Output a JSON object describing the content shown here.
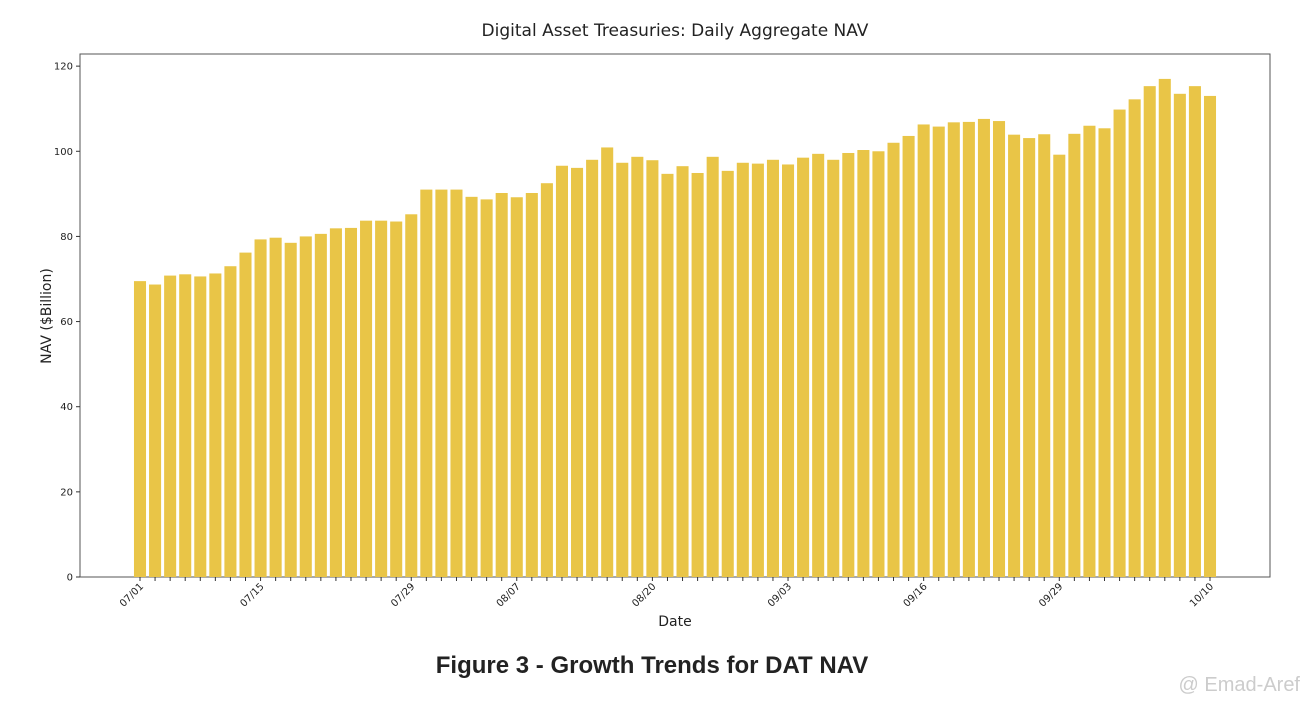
{
  "chart_data": {
    "type": "bar",
    "title": "Digital Asset Treasuries: Daily Aggregate NAV",
    "x_label": "Date",
    "y_label": "NAV ($Billion)",
    "color": "#e9c547",
    "categories": [
      "07/01",
      null,
      null,
      null,
      null,
      null,
      null,
      null,
      "07/15",
      null,
      null,
      null,
      null,
      null,
      null,
      null,
      null,
      null,
      "07/29",
      null,
      null,
      null,
      null,
      null,
      null,
      "08/07",
      null,
      null,
      null,
      null,
      null,
      null,
      null,
      null,
      "08/20",
      null,
      null,
      null,
      null,
      null,
      null,
      null,
      null,
      "09/03",
      null,
      null,
      null,
      null,
      null,
      null,
      null,
      null,
      "09/16",
      null,
      null,
      null,
      null,
      null,
      null,
      null,
      null,
      "09/29",
      null,
      null,
      null,
      null,
      null,
      null,
      null,
      null,
      null,
      "10/10"
    ],
    "values": [
      69.5,
      68.7,
      70.8,
      71.1,
      70.6,
      71.3,
      73,
      76.2,
      79.3,
      79.7,
      78.5,
      80,
      80.6,
      81.9,
      82,
      83.7,
      83.7,
      83.5,
      85.2,
      91,
      91,
      91,
      89.3,
      88.7,
      90.2,
      89.2,
      90.2,
      92.5,
      96.6,
      96.1,
      98,
      100.9,
      97.3,
      98.7,
      97.9,
      94.7,
      96.5,
      94.9,
      98.7,
      95.4,
      97.3,
      97.1,
      98,
      96.9,
      98.5,
      99.4,
      98,
      99.6,
      100.3,
      100,
      102,
      103.6,
      106.3,
      105.8,
      106.8,
      106.9,
      107.6,
      107.1,
      103.9,
      103.1,
      104,
      99.2,
      104.1,
      106,
      105.4,
      109.8,
      112.2,
      115.3,
      117,
      113.5,
      115.3,
      113
    ],
    "ylim": [
      0,
      122.85
    ],
    "yticks": [
      0,
      20,
      40,
      60,
      80,
      100,
      120
    ]
  },
  "caption": "Figure 3 - Growth Trends for DAT NAV",
  "watermark": "@ Emad-Aref"
}
